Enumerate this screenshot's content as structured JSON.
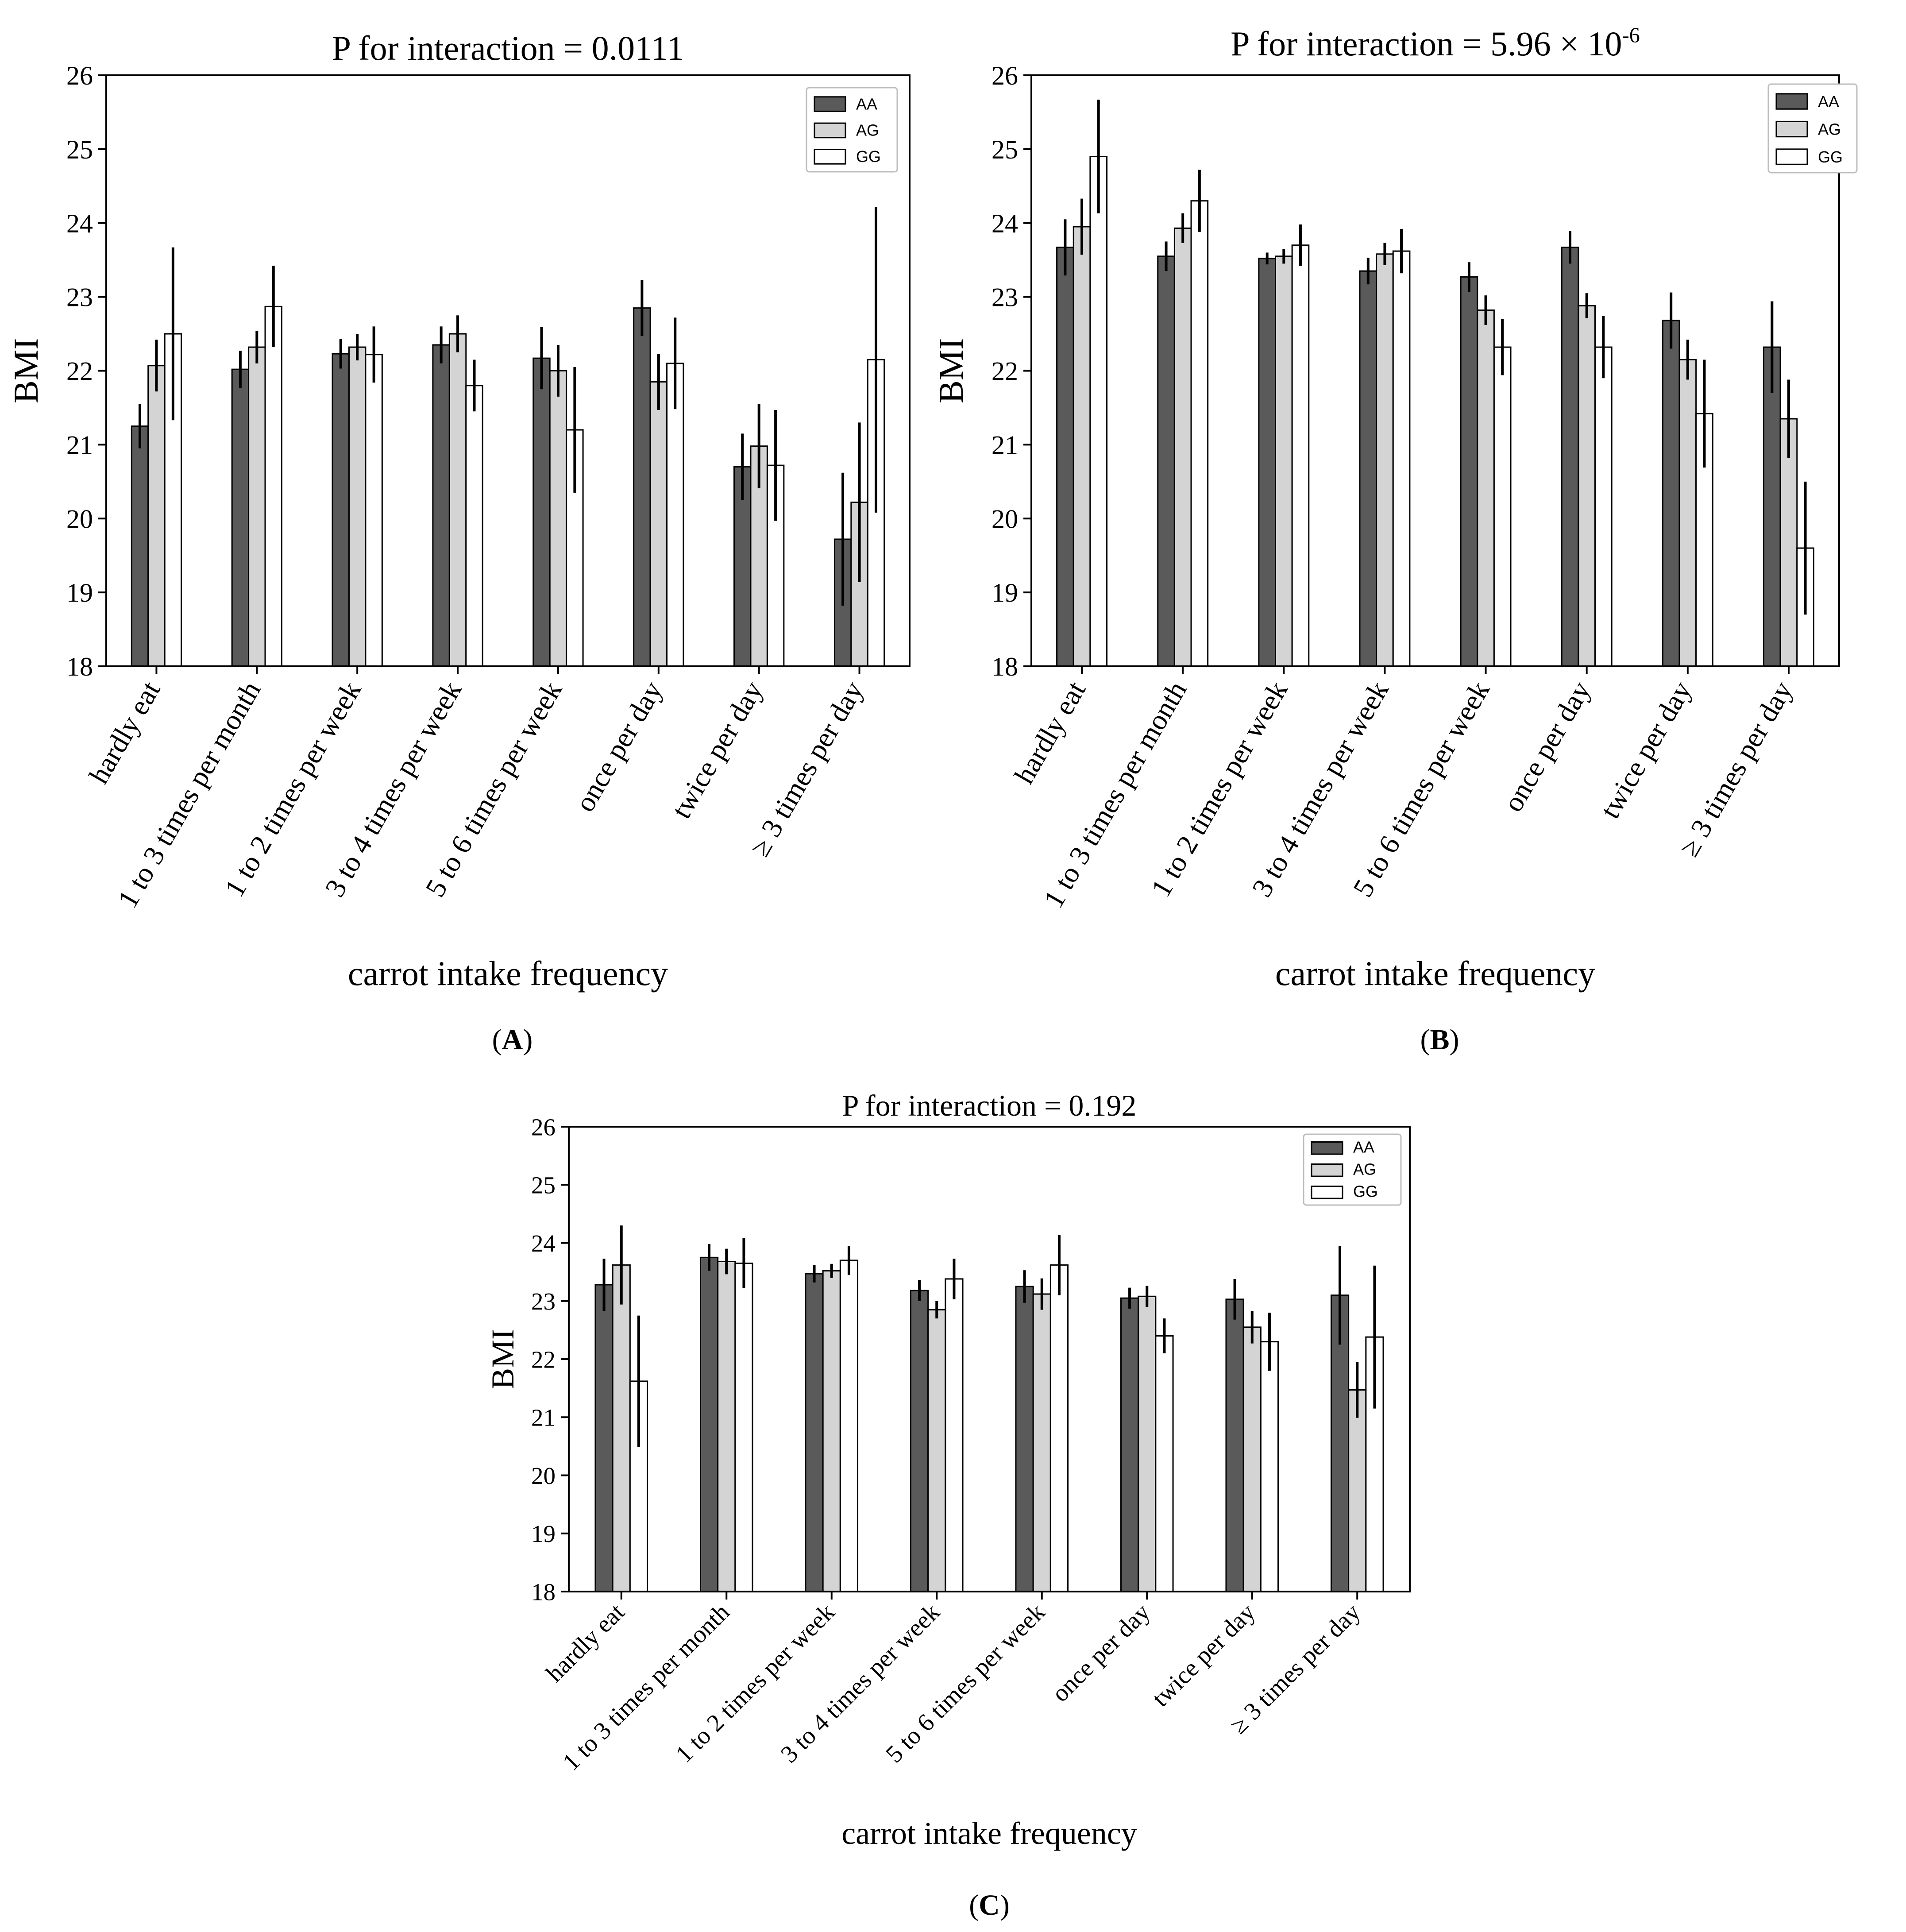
{
  "figure": {
    "panels": [
      "(A)",
      "(B)",
      "(C)"
    ]
  },
  "colors": {
    "AA": "#5a5a5a",
    "AG": "#d4d4d4",
    "GG": "#ffffff",
    "stroke": "#000000"
  },
  "chart_data": [
    {
      "type": "bar",
      "panel": "A",
      "panel_label": "(A)",
      "title": "P for interaction = 0.0111",
      "xlabel": "carrot intake frequency",
      "ylabel": "BMI",
      "ylim": [
        18,
        26
      ],
      "yticks": [
        "18",
        "19",
        "20",
        "21",
        "22",
        "23",
        "24",
        "25",
        "26"
      ],
      "categories": [
        "hardly eat",
        "1 to 3 times per month",
        "1 to 2 times per week",
        "3 to 4 times per week",
        "5 to 6 times per week",
        "once per day",
        "twice per day",
        "≥ 3 times per day"
      ],
      "series": [
        {
          "name": "AA",
          "values": [
            21.25,
            22.02,
            22.23,
            22.35,
            22.17,
            22.85,
            20.7,
            19.72
          ],
          "err": [
            0.3,
            0.25,
            0.2,
            0.25,
            0.42,
            0.38,
            0.45,
            0.9
          ]
        },
        {
          "name": "AG",
          "values": [
            22.07,
            22.32,
            22.32,
            22.5,
            22.0,
            21.85,
            20.98,
            20.22
          ],
          "err": [
            0.35,
            0.22,
            0.18,
            0.25,
            0.35,
            0.38,
            0.57,
            1.08
          ]
        },
        {
          "name": "GG",
          "values": [
            22.5,
            22.87,
            22.22,
            21.8,
            21.2,
            22.1,
            20.72,
            22.15
          ],
          "err": [
            1.17,
            0.55,
            0.38,
            0.35,
            0.85,
            0.62,
            0.75,
            2.07
          ]
        }
      ]
    },
    {
      "type": "bar",
      "panel": "B",
      "panel_label": "(B)",
      "title": "P for interaction = 5.96 × 10",
      "title_exponent": "-6",
      "xlabel": "carrot intake frequency",
      "ylabel": "BMI",
      "ylim": [
        18,
        26
      ],
      "yticks": [
        "18",
        "19",
        "20",
        "21",
        "22",
        "23",
        "24",
        "25",
        "26"
      ],
      "categories": [
        "hardly eat",
        "1 to 3 times per month",
        "1 to 2 times per week",
        "3 to 4 times per week",
        "5 to 6 times per week",
        "once per day",
        "twice per day",
        "≥ 3 times per day"
      ],
      "series": [
        {
          "name": "AA",
          "values": [
            23.67,
            23.55,
            23.52,
            23.35,
            23.27,
            23.67,
            22.68,
            22.32
          ],
          "err": [
            0.38,
            0.2,
            0.08,
            0.18,
            0.2,
            0.22,
            0.38,
            0.62
          ]
        },
        {
          "name": "AG",
          "values": [
            23.95,
            23.93,
            23.55,
            23.58,
            22.82,
            22.88,
            22.15,
            21.35
          ],
          "err": [
            0.38,
            0.2,
            0.1,
            0.15,
            0.2,
            0.17,
            0.27,
            0.53
          ]
        },
        {
          "name": "GG",
          "values": [
            24.9,
            24.3,
            23.7,
            23.62,
            22.32,
            22.32,
            21.42,
            19.6
          ],
          "err": [
            0.77,
            0.42,
            0.28,
            0.3,
            0.38,
            0.42,
            0.73,
            0.9
          ]
        }
      ]
    },
    {
      "type": "bar",
      "panel": "C",
      "panel_label": "(C)",
      "title": "P for interaction = 0.192",
      "xlabel": "carrot intake frequency",
      "ylabel": "BMI",
      "ylim": [
        18,
        26
      ],
      "yticks": [
        "18",
        "19",
        "20",
        "21",
        "22",
        "23",
        "24",
        "25",
        "26"
      ],
      "categories": [
        "hardly eat",
        "1 to 3 times per month",
        "1 to 2 times per week",
        "3 to 4 times per week",
        "5 to 6 times per week",
        "once per day",
        "twice per day",
        "≥ 3 times per day"
      ],
      "series": [
        {
          "name": "AA",
          "values": [
            23.28,
            23.75,
            23.47,
            23.18,
            23.25,
            23.05,
            23.03,
            23.1
          ],
          "err": [
            0.45,
            0.23,
            0.15,
            0.18,
            0.28,
            0.18,
            0.35,
            0.85
          ]
        },
        {
          "name": "AG",
          "values": [
            23.62,
            23.68,
            23.52,
            22.85,
            23.12,
            23.08,
            22.55,
            21.47
          ],
          "err": [
            0.68,
            0.22,
            0.12,
            0.15,
            0.27,
            0.18,
            0.28,
            0.48
          ]
        },
        {
          "name": "GG",
          "values": [
            21.62,
            23.65,
            23.7,
            23.38,
            23.62,
            22.4,
            22.3,
            22.38
          ],
          "err": [
            1.13,
            0.43,
            0.25,
            0.35,
            0.52,
            0.3,
            0.5,
            1.23
          ]
        }
      ]
    }
  ]
}
